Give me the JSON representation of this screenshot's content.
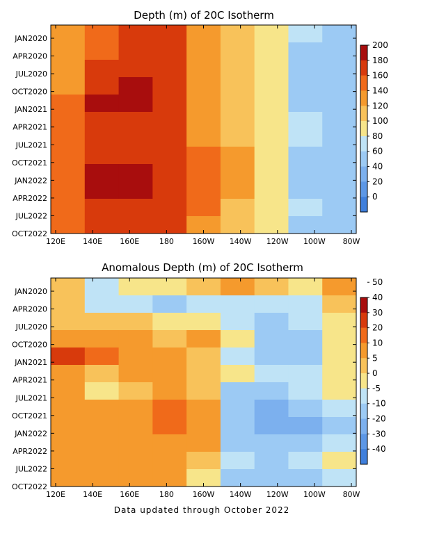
{
  "footer": "Data updated through October 2022",
  "chart_data": [
    {
      "type": "heatmap",
      "title": "Depth (m) of 20C Isotherm",
      "x_ticks": [
        "120E",
        "140E",
        "160E",
        "180",
        "160W",
        "140W",
        "120W",
        "100W",
        "80W"
      ],
      "y_ticks": [
        "JAN2020",
        "APR2020",
        "JUL2020",
        "OCT2020",
        "JAN2021",
        "APR2021",
        "JUL2021",
        "OCT2021",
        "JAN2022",
        "APR2022",
        "JUL2022",
        "OCT2022"
      ],
      "x_range": [
        "120E",
        "80W"
      ],
      "y_range": [
        "OCT2022",
        "JAN2020"
      ],
      "colorbar": {
        "levels": [
          0,
          20,
          40,
          60,
          80,
          100,
          120,
          140,
          160,
          180,
          200
        ],
        "labels": [
          "0",
          "20",
          "40",
          "60",
          "80",
          "100",
          "120",
          "140",
          "160",
          "180",
          "200"
        ],
        "colors": [
          "#3f7fdc",
          "#5c97e6",
          "#7cb0ee",
          "#9ccaf4",
          "#bfe3f6",
          "#f7e58a",
          "#f8c25a",
          "#f59a2d",
          "#f06a1a",
          "#d83a0c",
          "#a80d0d"
        ]
      },
      "grid": false,
      "legend": "right",
      "longitudes": [
        "120E",
        "140E",
        "160E",
        "180",
        "160W",
        "140W",
        "120W",
        "100W",
        "80W"
      ],
      "values": [
        [
          120,
          150,
          165,
          160,
          130,
          110,
          90,
          60,
          40
        ],
        [
          125,
          155,
          170,
          165,
          130,
          110,
          85,
          55,
          45
        ],
        [
          130,
          160,
          175,
          165,
          130,
          105,
          80,
          50,
          50
        ],
        [
          135,
          170,
          185,
          170,
          135,
          105,
          80,
          50,
          45
        ],
        [
          145,
          190,
          180,
          165,
          135,
          110,
          80,
          55,
          45
        ],
        [
          140,
          175,
          175,
          165,
          135,
          110,
          80,
          60,
          55
        ],
        [
          145,
          170,
          170,
          165,
          135,
          110,
          80,
          60,
          55
        ],
        [
          150,
          175,
          175,
          170,
          150,
          120,
          80,
          55,
          50
        ],
        [
          150,
          180,
          180,
          175,
          155,
          125,
          80,
          55,
          45
        ],
        [
          150,
          185,
          180,
          170,
          150,
          120,
          85,
          55,
          45
        ],
        [
          145,
          175,
          175,
          165,
          140,
          115,
          80,
          60,
          50
        ],
        [
          145,
          170,
          170,
          165,
          135,
          110,
          80,
          55,
          50
        ]
      ]
    },
    {
      "type": "heatmap",
      "title": "Anomalous Depth (m) of 20C Isotherm",
      "x_ticks": [
        "120E",
        "140E",
        "160E",
        "180",
        "160W",
        "140W",
        "120W",
        "100W",
        "80W"
      ],
      "y_ticks": [
        "JAN2020",
        "APR2020",
        "JUL2020",
        "OCT2020",
        "JAN2021",
        "APR2021",
        "JUL2021",
        "OCT2021",
        "JAN2022",
        "APR2022",
        "JUL2022",
        "OCT2022"
      ],
      "x_range": [
        "120E",
        "80W"
      ],
      "y_range": [
        "OCT2022",
        "JAN2020"
      ],
      "colorbar": {
        "levels": [
          -40,
          -30,
          -20,
          -10,
          -5,
          0,
          5,
          10,
          20,
          30,
          40,
          50
        ],
        "labels": [
          "-40",
          "-30",
          "-20",
          "-10",
          "-5",
          "0",
          "5",
          "10",
          "20",
          "30",
          "40",
          "50"
        ],
        "colors": [
          "#3f7fdc",
          "#5c97e6",
          "#7cb0ee",
          "#9ccaf4",
          "#bfe3f6",
          "#f7e58a",
          "#f8c25a",
          "#f59a2d",
          "#f06a1a",
          "#d83a0c",
          "#a80d0d"
        ]
      },
      "grid": false,
      "legend": "right",
      "longitudes": [
        "120E",
        "140E",
        "160E",
        "180",
        "160W",
        "140W",
        "120W",
        "100W",
        "80W"
      ],
      "values": [
        [
          3,
          -8,
          -5,
          -3,
          2,
          8,
          4,
          -3,
          5
        ],
        [
          0,
          -10,
          -10,
          -12,
          -8,
          -10,
          -8,
          -6,
          2
        ],
        [
          3,
          2,
          3,
          -3,
          -5,
          -8,
          -12,
          -10,
          -5
        ],
        [
          7,
          8,
          8,
          4,
          5,
          -5,
          -15,
          -12,
          -5
        ],
        [
          25,
          15,
          8,
          5,
          0,
          -8,
          -18,
          -15,
          -5
        ],
        [
          8,
          4,
          6,
          7,
          4,
          -5,
          -10,
          -8,
          -3
        ],
        [
          5,
          -5,
          3,
          7,
          4,
          -15,
          -12,
          -10,
          -5
        ],
        [
          6,
          8,
          8,
          10,
          8,
          -15,
          -25,
          -20,
          -10
        ],
        [
          8,
          9,
          9,
          10,
          8,
          -20,
          -28,
          -25,
          -15
        ],
        [
          8,
          9,
          9,
          9,
          5,
          -15,
          -18,
          -15,
          -10
        ],
        [
          8,
          8,
          8,
          7,
          0,
          -10,
          -12,
          -10,
          -5
        ],
        [
          8,
          7,
          7,
          5,
          -5,
          -15,
          -15,
          -12,
          -8
        ]
      ]
    }
  ]
}
